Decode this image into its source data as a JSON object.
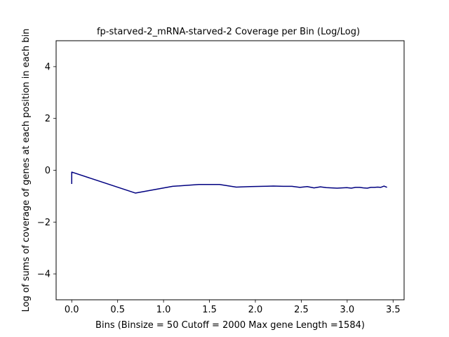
{
  "chart_data": {
    "type": "line",
    "title": "fp-starved-2_mRNA-starved-2 Coverage per Bin (Log/Log)",
    "xlabel": "Bins  (Binsize = 50 Cutoff = 2000 Max gene Length =1584)",
    "ylabel": "Log of sums of coverage of genes at each position in each bin",
    "xlim": [
      -0.17,
      3.62
    ],
    "ylim": [
      -5,
      5
    ],
    "xticks": [
      0.0,
      0.5,
      1.0,
      1.5,
      2.0,
      2.5,
      3.0,
      3.5
    ],
    "xtick_labels": [
      "0.0",
      "0.5",
      "1.0",
      "1.5",
      "2.0",
      "2.5",
      "3.0",
      "3.5"
    ],
    "yticks": [
      4,
      2,
      0,
      -2,
      -4
    ],
    "ytick_labels": [
      "4",
      "2",
      "0",
      "−2",
      "−4"
    ],
    "grid": false,
    "series": [
      {
        "color": "#000080",
        "x": [
          0.0,
          0.0,
          0.693,
          1.099,
          1.386,
          1.609,
          1.792,
          1.946,
          2.079,
          2.197,
          2.303,
          2.398,
          2.485,
          2.565,
          2.639,
          2.708,
          2.773,
          2.833,
          2.89,
          2.944,
          2.996,
          3.045,
          3.091,
          3.135,
          3.178,
          3.219,
          3.258,
          3.296,
          3.332,
          3.367,
          3.401,
          3.434
        ],
        "y": [
          -0.53,
          -0.07,
          -0.88,
          -0.62,
          -0.55,
          -0.55,
          -0.65,
          -0.63,
          -0.62,
          -0.61,
          -0.62,
          -0.62,
          -0.66,
          -0.63,
          -0.68,
          -0.64,
          -0.67,
          -0.68,
          -0.69,
          -0.68,
          -0.67,
          -0.69,
          -0.66,
          -0.66,
          -0.68,
          -0.69,
          -0.66,
          -0.66,
          -0.65,
          -0.66,
          -0.61,
          -0.66
        ]
      }
    ]
  }
}
